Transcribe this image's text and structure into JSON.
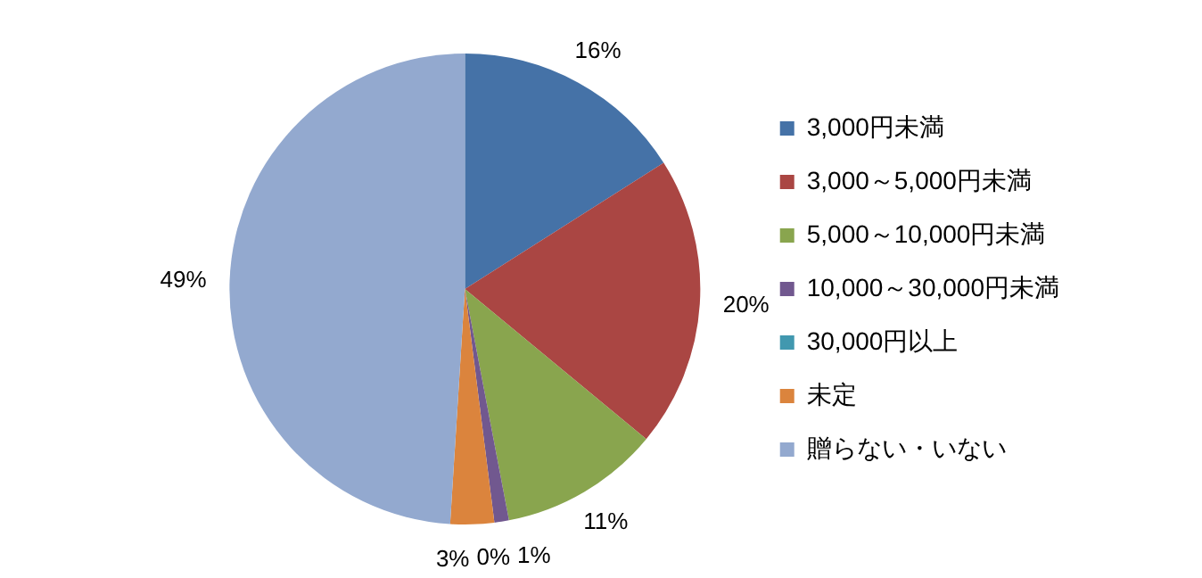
{
  "chart_data": {
    "type": "pie",
    "categories": [
      "3,000円未満",
      "3,000～5,000円未満",
      "5,000～10,000円未満",
      "10,000～30,000円未満",
      "30,000円以上",
      "未定",
      "贈らない・いない"
    ],
    "values": [
      16,
      20,
      11,
      1,
      0,
      3,
      49
    ],
    "value_labels": [
      "16%",
      "20%",
      "11%",
      "1%",
      "0%",
      "3%",
      "49%"
    ],
    "colors": [
      "#4572a7",
      "#aa4643",
      "#89a54e",
      "#71588f",
      "#4198af",
      "#db843d",
      "#93a9cf"
    ],
    "legend": "right"
  }
}
